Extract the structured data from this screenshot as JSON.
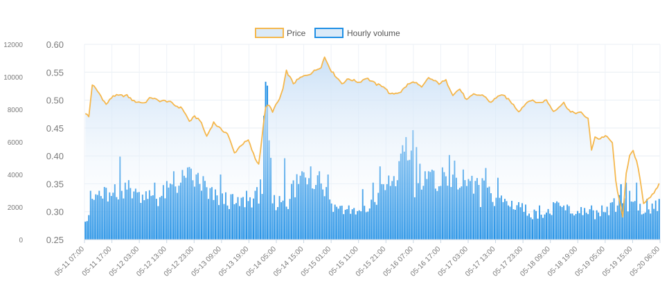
{
  "chart_data": {
    "type": "bar",
    "legend": {
      "placement": "top-center",
      "items": [
        {
          "label": "Price",
          "color": "#f5b74c",
          "fill": "#dbeaf8",
          "kind": "line"
        },
        {
          "label": "Hourly volume",
          "color": "#1f8fe5",
          "fill": "#dbeaf8",
          "kind": "bar"
        }
      ]
    },
    "grid": true,
    "x_tick_labels": [
      "05-11 07:00",
      "05-11 17:00",
      "05-12 03:00",
      "05-12 13:00",
      "05-12 23:00",
      "05-13 09:00",
      "05-13 19:00",
      "05-14 05:00",
      "05-14 15:00",
      "05-15 01:00",
      "05-15 11:00",
      "05-15 21:00",
      "05-16 07:00",
      "05-16 17:00",
      "05-17 03:00",
      "05-17 13:00",
      "05-17 23:00",
      "05-18 09:00",
      "05-18 19:00",
      "05-19 05:00",
      "05-19 15:00",
      "05-20 06:00"
    ],
    "y_left": {
      "label": "",
      "ticks": [
        "0",
        "2000",
        "4000",
        "6000",
        "8000",
        "10000",
        "12000"
      ],
      "lim": [
        0,
        12000
      ]
    },
    "y_right": {
      "label": "",
      "ticks": [
        "0.25",
        "0.30",
        "0.35",
        "0.40",
        "0.45",
        "0.50",
        "0.55",
        "0.60"
      ],
      "lim": [
        0.25,
        0.6
      ]
    },
    "price_knots": [
      [
        0,
        0.477
      ],
      [
        2,
        0.47
      ],
      [
        4,
        0.528
      ],
      [
        8,
        0.512
      ],
      [
        12,
        0.492
      ],
      [
        16,
        0.508
      ],
      [
        24,
        0.508
      ],
      [
        28,
        0.498
      ],
      [
        34,
        0.495
      ],
      [
        38,
        0.505
      ],
      [
        42,
        0.499
      ],
      [
        48,
        0.498
      ],
      [
        52,
        0.49
      ],
      [
        56,
        0.485
      ],
      [
        60,
        0.462
      ],
      [
        63,
        0.47
      ],
      [
        66,
        0.465
      ],
      [
        70,
        0.435
      ],
      [
        74,
        0.46
      ],
      [
        78,
        0.448
      ],
      [
        82,
        0.44
      ],
      [
        86,
        0.405
      ],
      [
        90,
        0.42
      ],
      [
        94,
        0.428
      ],
      [
        98,
        0.395
      ],
      [
        100,
        0.385
      ],
      [
        104,
        0.488
      ],
      [
        106,
        0.49
      ],
      [
        108,
        0.48
      ],
      [
        110,
        0.491
      ],
      [
        112,
        0.502
      ],
      [
        114,
        0.52
      ],
      [
        116,
        0.552
      ],
      [
        120,
        0.53
      ],
      [
        124,
        0.54
      ],
      [
        130,
        0.548
      ],
      [
        136,
        0.56
      ],
      [
        138,
        0.577
      ],
      [
        142,
        0.552
      ],
      [
        148,
        0.53
      ],
      [
        152,
        0.538
      ],
      [
        158,
        0.532
      ],
      [
        162,
        0.54
      ],
      [
        168,
        0.528
      ],
      [
        172,
        0.525
      ],
      [
        176,
        0.51
      ],
      [
        182,
        0.515
      ],
      [
        186,
        0.528
      ],
      [
        190,
        0.533
      ],
      [
        194,
        0.522
      ],
      [
        198,
        0.54
      ],
      [
        204,
        0.53
      ],
      [
        208,
        0.535
      ],
      [
        212,
        0.51
      ],
      [
        216,
        0.52
      ],
      [
        220,
        0.5
      ],
      [
        224,
        0.51
      ],
      [
        230,
        0.508
      ],
      [
        234,
        0.495
      ],
      [
        238,
        0.508
      ],
      [
        242,
        0.507
      ],
      [
        246,
        0.495
      ],
      [
        250,
        0.48
      ],
      [
        256,
        0.5
      ],
      [
        262,
        0.495
      ],
      [
        266,
        0.5
      ],
      [
        270,
        0.48
      ],
      [
        276,
        0.495
      ],
      [
        280,
        0.478
      ],
      [
        286,
        0.477
      ],
      [
        290,
        0.467
      ],
      [
        292,
        0.41
      ],
      [
        294,
        0.435
      ],
      [
        296,
        0.43
      ],
      [
        300,
        0.436
      ],
      [
        304,
        0.424
      ],
      [
        306,
        0.355
      ],
      [
        308,
        0.32
      ],
      [
        310,
        0.29
      ],
      [
        312,
        0.37
      ],
      [
        314,
        0.4
      ],
      [
        316,
        0.408
      ],
      [
        318,
        0.39
      ],
      [
        320,
        0.36
      ],
      [
        322,
        0.315
      ],
      [
        324,
        0.322
      ],
      [
        328,
        0.332
      ],
      [
        331,
        0.35
      ]
    ],
    "volume_knots": [
      [
        0,
        1200
      ],
      [
        3,
        1800
      ],
      [
        6,
        2700
      ],
      [
        9,
        2600
      ],
      [
        12,
        2800
      ],
      [
        15,
        2500
      ],
      [
        18,
        2200
      ],
      [
        21,
        3000
      ],
      [
        24,
        3200
      ],
      [
        27,
        3000
      ],
      [
        30,
        2700
      ],
      [
        33,
        2900
      ],
      [
        36,
        2600
      ],
      [
        39,
        2800
      ],
      [
        42,
        2500
      ],
      [
        45,
        2800
      ],
      [
        48,
        3000
      ],
      [
        51,
        3300
      ],
      [
        54,
        3500
      ],
      [
        57,
        3700
      ],
      [
        60,
        3800
      ],
      [
        63,
        3600
      ],
      [
        66,
        3400
      ],
      [
        69,
        3200
      ],
      [
        72,
        2800
      ],
      [
        75,
        2600
      ],
      [
        78,
        2400
      ],
      [
        81,
        2500
      ],
      [
        84,
        2300
      ],
      [
        87,
        2100
      ],
      [
        90,
        2300
      ],
      [
        93,
        2400
      ],
      [
        96,
        2500
      ],
      [
        99,
        2700
      ],
      [
        102,
        3000
      ],
      [
        104,
        10000
      ],
      [
        106,
        6000
      ],
      [
        108,
        2400
      ],
      [
        111,
        2200
      ],
      [
        114,
        2600
      ],
      [
        117,
        2300
      ],
      [
        120,
        3400
      ],
      [
        123,
        3700
      ],
      [
        126,
        4000
      ],
      [
        129,
        4100
      ],
      [
        132,
        3800
      ],
      [
        135,
        3600
      ],
      [
        138,
        3100
      ],
      [
        141,
        2400
      ],
      [
        144,
        2000
      ],
      [
        147,
        1900
      ],
      [
        150,
        1800
      ],
      [
        153,
        1700
      ],
      [
        156,
        1600
      ],
      [
        159,
        1700
      ],
      [
        162,
        1800
      ],
      [
        165,
        2100
      ],
      [
        168,
        2500
      ],
      [
        171,
        2900
      ],
      [
        174,
        3300
      ],
      [
        177,
        3700
      ],
      [
        180,
        3900
      ],
      [
        183,
        4600
      ],
      [
        186,
        5600
      ],
      [
        189,
        6200
      ],
      [
        192,
        4300
      ],
      [
        195,
        3700
      ],
      [
        198,
        3700
      ],
      [
        201,
        3500
      ],
      [
        204,
        3800
      ],
      [
        207,
        3900
      ],
      [
        210,
        3600
      ],
      [
        213,
        4000
      ],
      [
        216,
        3600
      ],
      [
        219,
        3500
      ],
      [
        222,
        3300
      ],
      [
        225,
        3500
      ],
      [
        228,
        3200
      ],
      [
        231,
        3000
      ],
      [
        234,
        2600
      ],
      [
        237,
        2500
      ],
      [
        240,
        2400
      ],
      [
        243,
        2300
      ],
      [
        246,
        2200
      ],
      [
        249,
        2100
      ],
      [
        252,
        2000
      ],
      [
        255,
        1700
      ],
      [
        258,
        1600
      ],
      [
        261,
        1500
      ],
      [
        264,
        1600
      ],
      [
        267,
        1600
      ],
      [
        270,
        1800
      ],
      [
        273,
        2000
      ],
      [
        276,
        2000
      ],
      [
        279,
        1800
      ],
      [
        282,
        1700
      ],
      [
        285,
        1600
      ],
      [
        288,
        1700
      ],
      [
        291,
        1600
      ],
      [
        294,
        1600
      ],
      [
        297,
        1500
      ],
      [
        300,
        1500
      ],
      [
        303,
        2000
      ],
      [
        306,
        2200
      ],
      [
        309,
        2300
      ],
      [
        312,
        2100
      ],
      [
        315,
        2000
      ],
      [
        318,
        2000
      ],
      [
        321,
        1600
      ],
      [
        324,
        1900
      ],
      [
        327,
        2100
      ],
      [
        330,
        2200
      ],
      [
        331,
        2500
      ]
    ],
    "volume_spikes": [
      [
        0,
        1100
      ],
      [
        3,
        3000
      ],
      [
        8,
        3000
      ],
      [
        14,
        2900
      ],
      [
        17,
        3400
      ],
      [
        20,
        5100
      ],
      [
        23,
        3500
      ],
      [
        30,
        2900
      ],
      [
        36,
        2500
      ],
      [
        40,
        3500
      ],
      [
        47,
        3600
      ],
      [
        51,
        4200
      ],
      [
        55,
        3500
      ],
      [
        58,
        3800
      ],
      [
        65,
        4100
      ],
      [
        68,
        3900
      ],
      [
        71,
        2500
      ],
      [
        78,
        4000
      ],
      [
        85,
        2800
      ],
      [
        93,
        3000
      ],
      [
        98,
        3000
      ],
      [
        101,
        3700
      ],
      [
        104,
        9700
      ],
      [
        106,
        6100
      ],
      [
        111,
        2000
      ],
      [
        115,
        5000
      ],
      [
        121,
        2600
      ],
      [
        125,
        4200
      ],
      [
        130,
        4500
      ],
      [
        135,
        4200
      ],
      [
        140,
        4000
      ],
      [
        146,
        1900
      ],
      [
        152,
        2100
      ],
      [
        160,
        3100
      ],
      [
        166,
        3500
      ],
      [
        170,
        4500
      ],
      [
        177,
        3600
      ],
      [
        183,
        5800
      ],
      [
        185,
        6300
      ],
      [
        187,
        4900
      ],
      [
        190,
        2600
      ],
      [
        196,
        4200
      ],
      [
        200,
        4300
      ],
      [
        205,
        3300
      ],
      [
        210,
        5200
      ],
      [
        214,
        3800
      ],
      [
        222,
        3600
      ],
      [
        228,
        2000
      ],
      [
        231,
        4400
      ],
      [
        238,
        3800
      ],
      [
        244,
        2100
      ],
      [
        250,
        2300
      ],
      [
        256,
        1600
      ],
      [
        262,
        2100
      ],
      [
        270,
        2300
      ],
      [
        275,
        2000
      ],
      [
        280,
        1600
      ],
      [
        286,
        2000
      ],
      [
        292,
        2100
      ],
      [
        298,
        2100
      ],
      [
        302,
        1500
      ],
      [
        304,
        2300
      ],
      [
        306,
        1700
      ],
      [
        309,
        3400
      ],
      [
        312,
        3500
      ],
      [
        314,
        3000
      ],
      [
        318,
        3500
      ],
      [
        320,
        2200
      ],
      [
        324,
        2500
      ],
      [
        326,
        1600
      ],
      [
        329,
        2400
      ],
      [
        331,
        2500
      ]
    ]
  }
}
